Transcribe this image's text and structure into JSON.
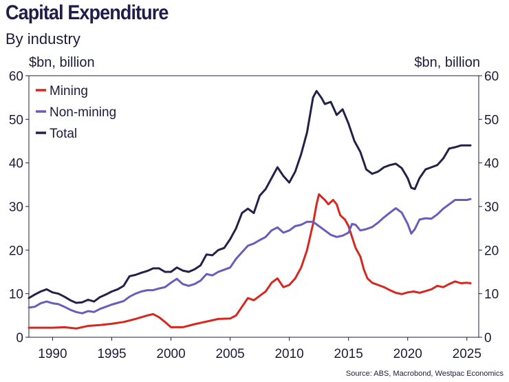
{
  "header": {
    "title": "Capital Expenditure",
    "subtitle": "By industry",
    "unit_left": "$bn, billion",
    "unit_right": "$bn, billion"
  },
  "footer": {
    "source": "Source: ABS, Macrobond, Westpac Economics"
  },
  "chart_data": {
    "type": "line",
    "title": "Capital Expenditure",
    "subtitle": "By industry",
    "ylabel_left": "$bn, billion",
    "ylabel_right": "$bn, billion",
    "xlim": [
      1988,
      2026
    ],
    "ylim": [
      0,
      60
    ],
    "yticks": [
      0,
      10,
      20,
      30,
      40,
      50,
      60
    ],
    "xticks": [
      1990,
      1995,
      2000,
      2005,
      2010,
      2015,
      2020,
      2025
    ],
    "grid": false,
    "legend": "top-left",
    "series": [
      {
        "name": "Mining",
        "color": "#d7261e",
        "points": [
          [
            1988.0,
            2.2
          ],
          [
            1989.0,
            2.2
          ],
          [
            1990.0,
            2.2
          ],
          [
            1991.0,
            2.3
          ],
          [
            1992.0,
            2.0
          ],
          [
            1993.0,
            2.6
          ],
          [
            1994.0,
            2.8
          ],
          [
            1995.0,
            3.1
          ],
          [
            1996.0,
            3.5
          ],
          [
            1997.0,
            4.2
          ],
          [
            1998.0,
            5.0
          ],
          [
            1998.5,
            5.3
          ],
          [
            1999.0,
            4.6
          ],
          [
            1999.5,
            3.5
          ],
          [
            2000.0,
            2.3
          ],
          [
            2001.0,
            2.3
          ],
          [
            2002.0,
            3.0
          ],
          [
            2003.0,
            3.6
          ],
          [
            2004.0,
            4.2
          ],
          [
            2005.0,
            4.3
          ],
          [
            2005.5,
            5.0
          ],
          [
            2006.0,
            7.0
          ],
          [
            2006.5,
            9.0
          ],
          [
            2007.0,
            8.5
          ],
          [
            2007.5,
            9.5
          ],
          [
            2008.0,
            10.5
          ],
          [
            2008.5,
            12.5
          ],
          [
            2009.0,
            13.5
          ],
          [
            2009.5,
            11.5
          ],
          [
            2010.0,
            12.0
          ],
          [
            2010.5,
            13.5
          ],
          [
            2011.0,
            16.0
          ],
          [
            2011.5,
            20.0
          ],
          [
            2012.0,
            26.0
          ],
          [
            2012.3,
            30.5
          ],
          [
            2012.5,
            32.8
          ],
          [
            2012.8,
            32.0
          ],
          [
            2013.0,
            31.5
          ],
          [
            2013.3,
            30.5
          ],
          [
            2013.7,
            31.5
          ],
          [
            2014.0,
            30.5
          ],
          [
            2014.3,
            28.0
          ],
          [
            2014.7,
            27.0
          ],
          [
            2015.0,
            25.5
          ],
          [
            2015.3,
            23.0
          ],
          [
            2015.6,
            20.5
          ],
          [
            2016.0,
            18.5
          ],
          [
            2016.3,
            15.5
          ],
          [
            2016.6,
            13.5
          ],
          [
            2017.0,
            12.5
          ],
          [
            2017.5,
            12.0
          ],
          [
            2018.0,
            11.5
          ],
          [
            2018.5,
            10.8
          ],
          [
            2019.0,
            10.2
          ],
          [
            2019.5,
            9.9
          ],
          [
            2020.0,
            10.3
          ],
          [
            2020.5,
            10.5
          ],
          [
            2021.0,
            10.2
          ],
          [
            2021.5,
            10.6
          ],
          [
            2022.0,
            11.0
          ],
          [
            2022.5,
            11.8
          ],
          [
            2023.0,
            11.5
          ],
          [
            2023.5,
            12.2
          ],
          [
            2024.0,
            12.8
          ],
          [
            2024.5,
            12.4
          ],
          [
            2025.0,
            12.5
          ],
          [
            2025.3,
            12.4
          ]
        ]
      },
      {
        "name": "Non-mining",
        "color": "#6b5bbd",
        "points": [
          [
            1988.0,
            6.8
          ],
          [
            1988.5,
            7.0
          ],
          [
            1989.0,
            7.8
          ],
          [
            1989.5,
            8.2
          ],
          [
            1990.0,
            7.8
          ],
          [
            1990.5,
            7.6
          ],
          [
            1991.0,
            7.0
          ],
          [
            1991.5,
            6.3
          ],
          [
            1992.0,
            5.8
          ],
          [
            1992.5,
            5.5
          ],
          [
            1993.0,
            6.0
          ],
          [
            1993.5,
            5.8
          ],
          [
            1994.0,
            6.5
          ],
          [
            1994.5,
            7.0
          ],
          [
            1995.0,
            7.5
          ],
          [
            1995.5,
            7.9
          ],
          [
            1996.0,
            8.3
          ],
          [
            1996.5,
            9.3
          ],
          [
            1997.0,
            10.0
          ],
          [
            1997.5,
            10.5
          ],
          [
            1998.0,
            10.8
          ],
          [
            1998.5,
            10.8
          ],
          [
            1999.0,
            11.2
          ],
          [
            1999.5,
            11.5
          ],
          [
            2000.0,
            12.5
          ],
          [
            2000.5,
            13.4
          ],
          [
            2001.0,
            12.2
          ],
          [
            2001.5,
            11.8
          ],
          [
            2002.0,
            12.2
          ],
          [
            2002.5,
            13.0
          ],
          [
            2003.0,
            14.5
          ],
          [
            2003.5,
            14.2
          ],
          [
            2004.0,
            15.0
          ],
          [
            2004.5,
            15.5
          ],
          [
            2005.0,
            16.0
          ],
          [
            2005.5,
            18.0
          ],
          [
            2006.0,
            19.5
          ],
          [
            2006.5,
            21.0
          ],
          [
            2007.0,
            21.5
          ],
          [
            2007.5,
            22.3
          ],
          [
            2008.0,
            23.0
          ],
          [
            2008.5,
            24.5
          ],
          [
            2009.0,
            25.2
          ],
          [
            2009.5,
            24.0
          ],
          [
            2010.0,
            24.5
          ],
          [
            2010.5,
            25.5
          ],
          [
            2011.0,
            25.8
          ],
          [
            2011.5,
            26.5
          ],
          [
            2012.0,
            26.5
          ],
          [
            2012.5,
            25.5
          ],
          [
            2013.0,
            24.5
          ],
          [
            2013.5,
            23.5
          ],
          [
            2014.0,
            23.0
          ],
          [
            2014.5,
            23.3
          ],
          [
            2015.0,
            24.0
          ],
          [
            2015.3,
            26.0
          ],
          [
            2015.6,
            25.8
          ],
          [
            2016.0,
            24.5
          ],
          [
            2016.5,
            24.8
          ],
          [
            2017.0,
            25.3
          ],
          [
            2017.5,
            26.3
          ],
          [
            2018.0,
            27.5
          ],
          [
            2018.5,
            28.6
          ],
          [
            2019.0,
            29.6
          ],
          [
            2019.5,
            28.6
          ],
          [
            2020.0,
            26.0
          ],
          [
            2020.3,
            23.8
          ],
          [
            2020.6,
            24.8
          ],
          [
            2021.0,
            27.0
          ],
          [
            2021.5,
            27.3
          ],
          [
            2022.0,
            27.2
          ],
          [
            2022.5,
            28.2
          ],
          [
            2023.0,
            29.5
          ],
          [
            2023.5,
            30.5
          ],
          [
            2024.0,
            31.5
          ],
          [
            2024.5,
            31.5
          ],
          [
            2025.0,
            31.5
          ],
          [
            2025.3,
            31.7
          ]
        ]
      },
      {
        "name": "Total",
        "color": "#232049",
        "points": [
          [
            1988.0,
            9.0
          ],
          [
            1988.5,
            9.8
          ],
          [
            1989.0,
            10.5
          ],
          [
            1989.5,
            11.0
          ],
          [
            1990.0,
            10.3
          ],
          [
            1990.5,
            10.0
          ],
          [
            1991.0,
            9.3
          ],
          [
            1991.5,
            8.5
          ],
          [
            1992.0,
            7.9
          ],
          [
            1992.5,
            8.0
          ],
          [
            1993.0,
            8.6
          ],
          [
            1993.5,
            8.2
          ],
          [
            1994.0,
            9.2
          ],
          [
            1994.5,
            9.8
          ],
          [
            1995.0,
            10.5
          ],
          [
            1995.5,
            11.0
          ],
          [
            1996.0,
            11.8
          ],
          [
            1996.5,
            14.0
          ],
          [
            1997.0,
            14.3
          ],
          [
            1997.5,
            14.8
          ],
          [
            1998.0,
            15.2
          ],
          [
            1998.5,
            15.8
          ],
          [
            1999.0,
            15.8
          ],
          [
            1999.5,
            15.0
          ],
          [
            2000.0,
            15.0
          ],
          [
            2000.5,
            16.0
          ],
          [
            2001.0,
            15.3
          ],
          [
            2001.5,
            15.0
          ],
          [
            2002.0,
            15.6
          ],
          [
            2002.5,
            16.5
          ],
          [
            2003.0,
            19.0
          ],
          [
            2003.5,
            18.8
          ],
          [
            2004.0,
            20.0
          ],
          [
            2004.5,
            20.5
          ],
          [
            2005.0,
            22.5
          ],
          [
            2005.5,
            25.0
          ],
          [
            2006.0,
            28.5
          ],
          [
            2006.5,
            29.5
          ],
          [
            2007.0,
            28.5
          ],
          [
            2007.5,
            32.5
          ],
          [
            2008.0,
            34.0
          ],
          [
            2008.5,
            36.5
          ],
          [
            2009.0,
            39.0
          ],
          [
            2009.5,
            37.0
          ],
          [
            2010.0,
            35.5
          ],
          [
            2010.5,
            38.0
          ],
          [
            2011.0,
            42.0
          ],
          [
            2011.5,
            47.0
          ],
          [
            2012.0,
            55.0
          ],
          [
            2012.3,
            56.5
          ],
          [
            2012.7,
            55.0
          ],
          [
            2013.0,
            53.5
          ],
          [
            2013.5,
            54.0
          ],
          [
            2014.0,
            51.0
          ],
          [
            2014.5,
            52.3
          ],
          [
            2015.0,
            49.0
          ],
          [
            2015.5,
            45.0
          ],
          [
            2015.8,
            43.5
          ],
          [
            2016.0,
            42.5
          ],
          [
            2016.5,
            38.5
          ],
          [
            2017.0,
            37.5
          ],
          [
            2017.5,
            38.0
          ],
          [
            2018.0,
            39.0
          ],
          [
            2018.5,
            39.5
          ],
          [
            2019.0,
            39.8
          ],
          [
            2019.5,
            38.8
          ],
          [
            2020.0,
            36.5
          ],
          [
            2020.3,
            34.3
          ],
          [
            2020.6,
            34.0
          ],
          [
            2021.0,
            36.5
          ],
          [
            2021.5,
            38.5
          ],
          [
            2022.0,
            39.0
          ],
          [
            2022.5,
            39.5
          ],
          [
            2023.0,
            41.0
          ],
          [
            2023.5,
            43.3
          ],
          [
            2024.0,
            43.6
          ],
          [
            2024.5,
            44.0
          ],
          [
            2025.0,
            44.0
          ],
          [
            2025.3,
            44.0
          ]
        ]
      }
    ]
  }
}
